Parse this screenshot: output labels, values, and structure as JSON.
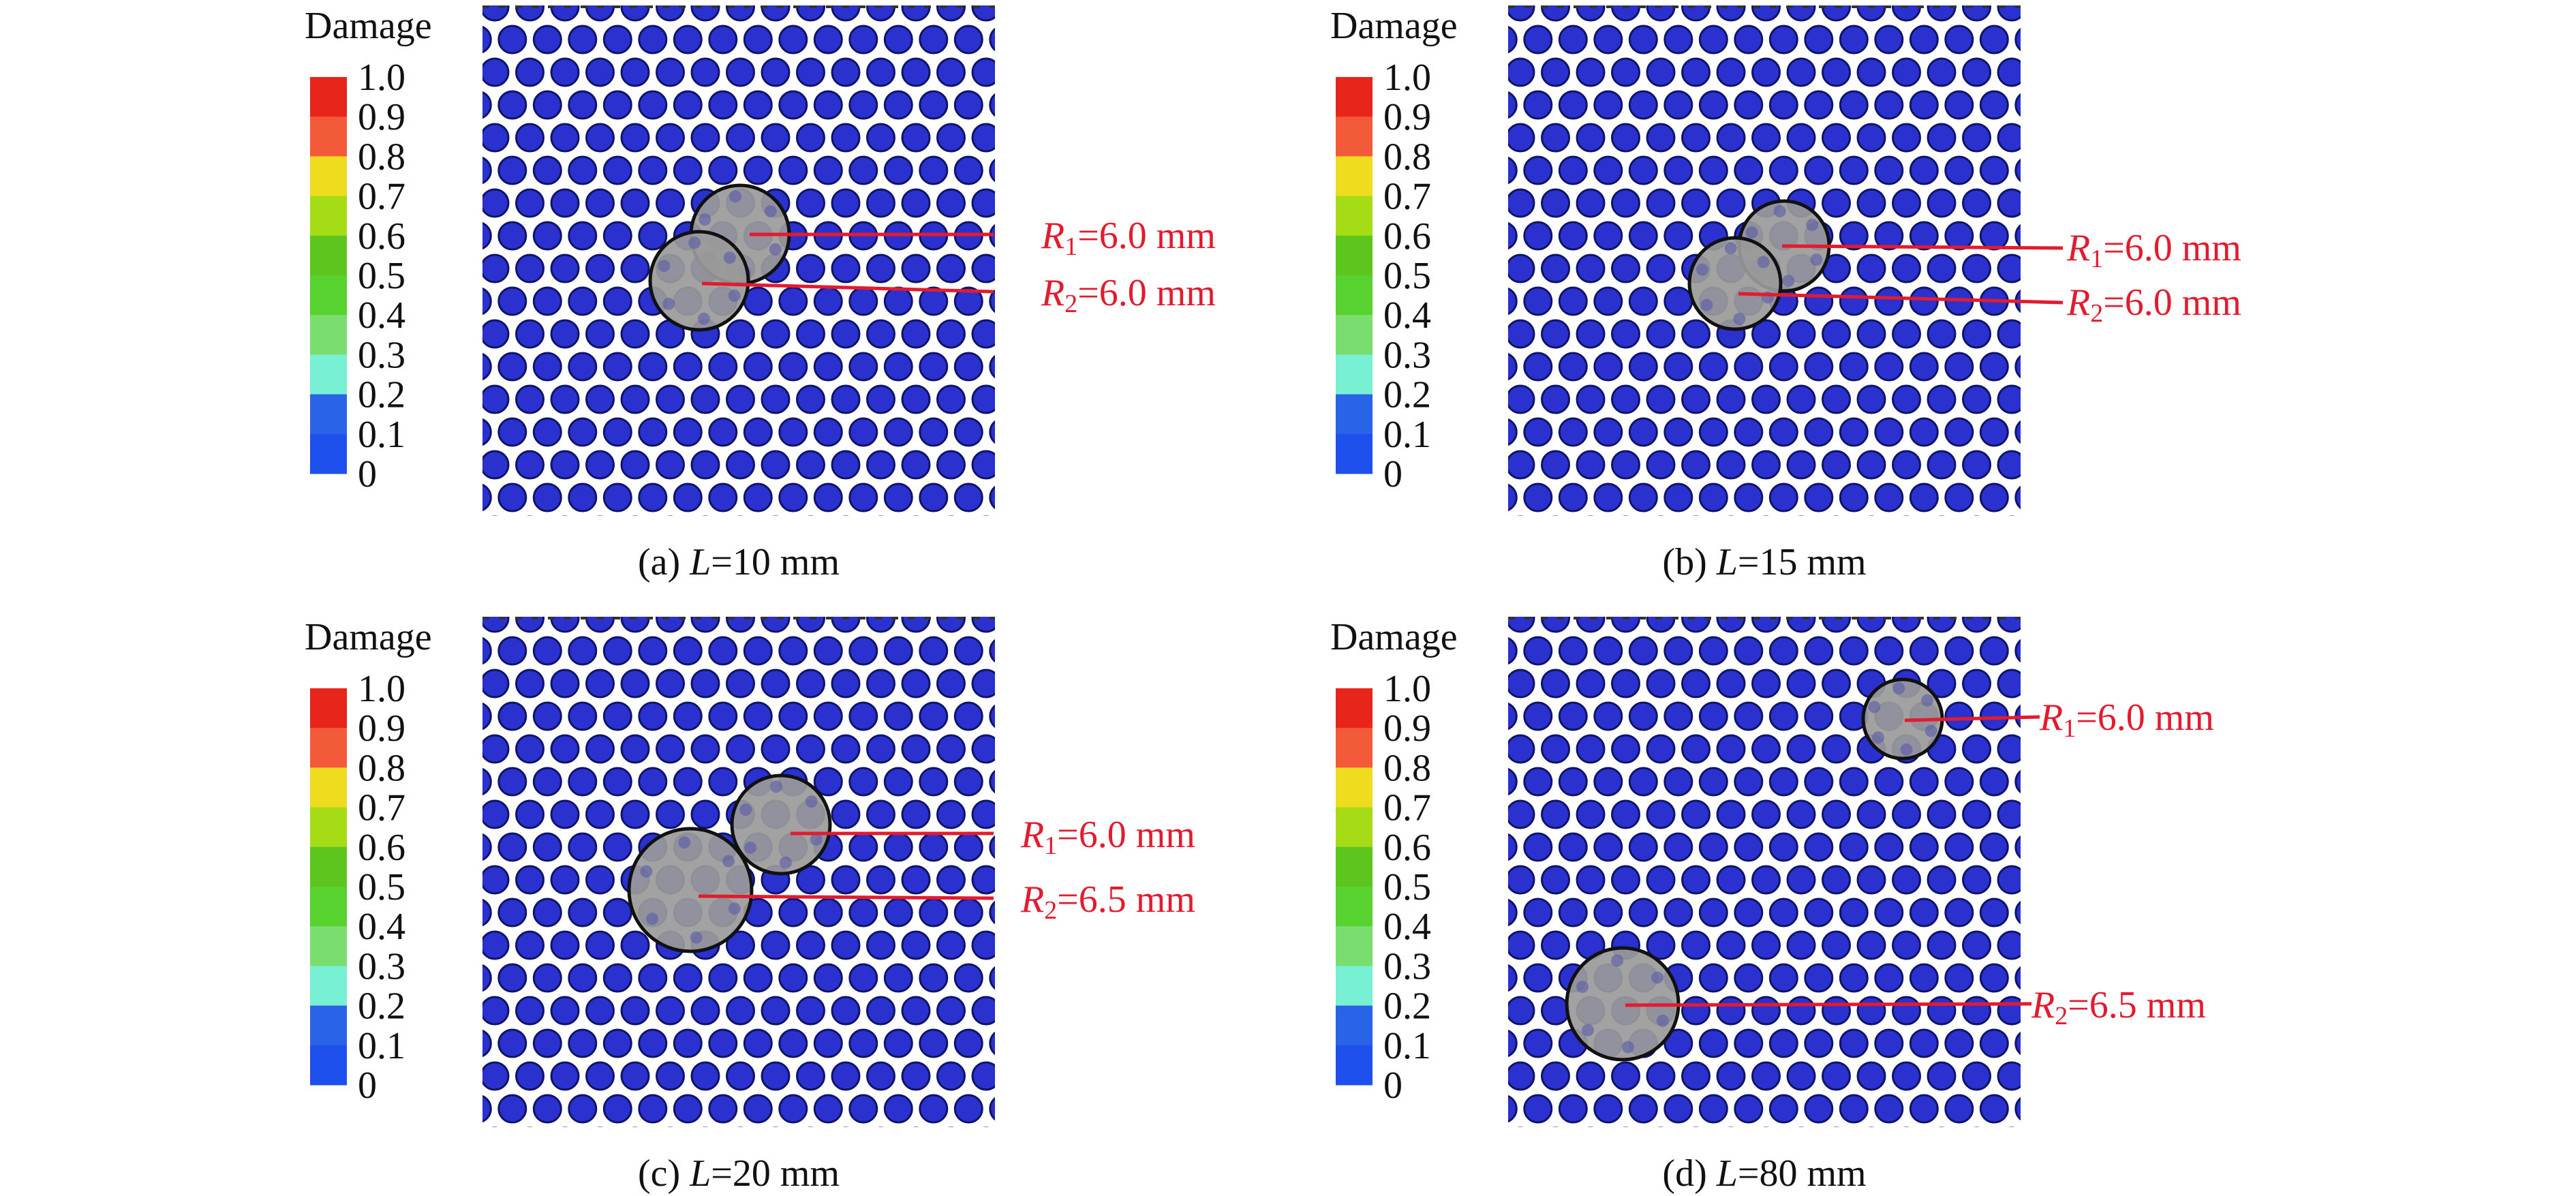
{
  "legend": {
    "title": "Damage",
    "ticks": [
      "1.0",
      "0.9",
      "0.8",
      "0.7",
      "0.6",
      "0.5",
      "0.4",
      "0.3",
      "0.2",
      "0.1",
      "0"
    ],
    "colors": [
      "#e8251b",
      "#f25a3a",
      "#f0dc1e",
      "#a6dc16",
      "#5cc61e",
      "#58d22e",
      "#7ade6e",
      "#78f0d4",
      "#2a64e6",
      "#1e50ee",
      "#1a2ee6"
    ]
  },
  "colors": {
    "background": "#ffffff",
    "particle": "#2b31cf",
    "particle_edge": "#0e1468",
    "hole_fill": "#9a9a9a",
    "hole_edge": "#111111",
    "annotation": "#e21b2f",
    "caption": "#111111"
  },
  "panels": [
    {
      "caption_prefix": "(a) ",
      "caption_var": "L",
      "caption_value": "=10 mm",
      "holes": [
        {
          "label_var": "R",
          "label_sub": "1",
          "label_value": "=6.0 mm"
        },
        {
          "label_var": "R",
          "label_sub": "2",
          "label_value": "=6.0 mm"
        }
      ]
    },
    {
      "caption_prefix": "(b) ",
      "caption_var": "L",
      "caption_value": "=15 mm",
      "holes": [
        {
          "label_var": "R",
          "label_sub": "1",
          "label_value": "=6.0 mm"
        },
        {
          "label_var": "R",
          "label_sub": "2",
          "label_value": "=6.0 mm"
        }
      ]
    },
    {
      "caption_prefix": "(c) ",
      "caption_var": "L",
      "caption_value": "=20 mm",
      "holes": [
        {
          "label_var": "R",
          "label_sub": "1",
          "label_value": "=6.0 mm"
        },
        {
          "label_var": "R",
          "label_sub": "2",
          "label_value": "=6.5 mm"
        }
      ]
    },
    {
      "caption_prefix": "(d) ",
      "caption_var": "L",
      "caption_value": "=80 mm",
      "holes": [
        {
          "label_var": "R",
          "label_sub": "1",
          "label_value": "=6.0 mm"
        },
        {
          "label_var": "R",
          "label_sub": "2",
          "label_value": "=6.5 mm"
        }
      ]
    }
  ]
}
